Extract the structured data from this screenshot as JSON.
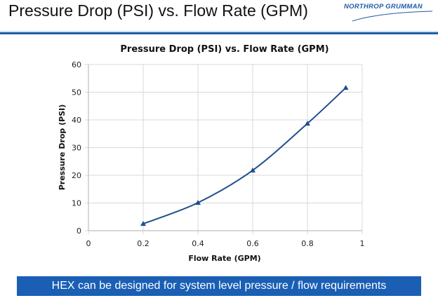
{
  "slide": {
    "title": "Pressure Drop (PSI) vs. Flow Rate (GPM)",
    "logo_text": "NORTHROP GRUMMAN",
    "banner": "HEX can be designed for system level pressure / flow requirements",
    "colors": {
      "accent": "#1f5ea8",
      "banner": "#1a5fb4",
      "series": "#1f4e8c",
      "grid": "#d9d9d9"
    }
  },
  "chart_data": {
    "type": "line",
    "title": "Pressure Drop (PSI) vs. Flow Rate (GPM)",
    "xlabel": "Flow Rate (GPM)",
    "ylabel": "Pressure Drop (PSI)",
    "xlim": [
      0,
      1
    ],
    "ylim": [
      0,
      60
    ],
    "x_ticks": [
      0,
      0.2,
      0.4,
      0.6,
      0.8,
      1
    ],
    "x_tick_labels": [
      "0",
      "0.2",
      "0.4",
      "0.6",
      "0.8",
      "1"
    ],
    "y_ticks": [
      0,
      10,
      20,
      30,
      40,
      50,
      60
    ],
    "y_tick_labels": [
      "0",
      "10",
      "20",
      "30",
      "40",
      "50",
      "60"
    ],
    "grid": true,
    "legend": "none",
    "marker": "triangle",
    "smooth": true,
    "series": [
      {
        "name": "Pressure Drop",
        "x": [
          0.2,
          0.4,
          0.6,
          0.8,
          0.94
        ],
        "values": [
          2.5,
          10.1,
          21.8,
          38.7,
          51.6
        ]
      }
    ]
  }
}
